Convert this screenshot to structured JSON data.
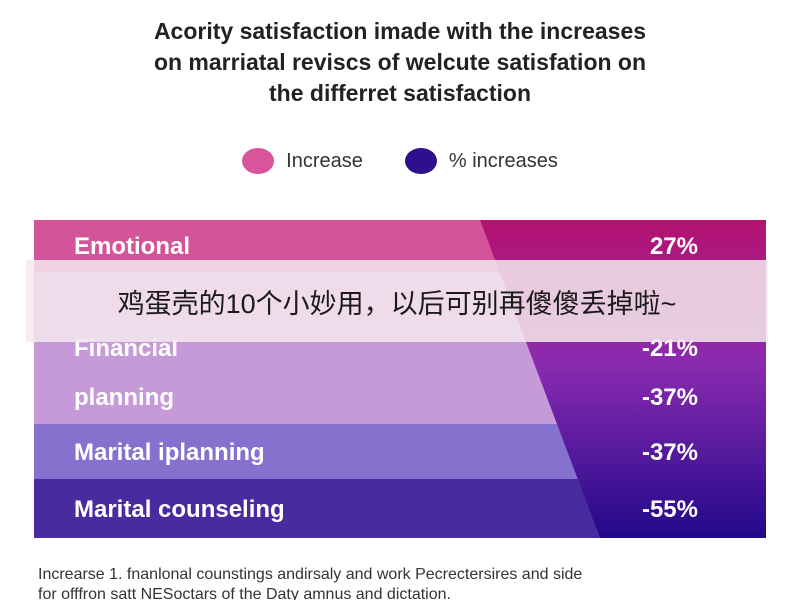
{
  "title_lines": [
    "Acority satisfaction imade with the increases",
    "on marriatal reviscs of welcute satisfation on",
    "the differret satisfaction"
  ],
  "legend": [
    {
      "label": "Increase",
      "color": "#d9559a"
    },
    {
      "label": "% increases",
      "color": "#2f0f8c"
    }
  ],
  "colors": {
    "increase": "#d9559a",
    "pct_increases": "#2f0f8c",
    "rows": [
      "#d4549a",
      "#cf8fd4",
      "#c69ad8",
      "#8572cf",
      "#4a2b9f"
    ],
    "right_panel": "#7b2aa8"
  },
  "chart_data": {
    "type": "table",
    "categories": [
      "Emotional",
      "",
      "Financial",
      "planning",
      "Marital iplanning",
      "Marital counseling"
    ],
    "values": [
      27,
      null,
      -21,
      -37,
      -37,
      -55
    ],
    "value_labels": [
      "27%",
      "",
      "-21%",
      "-37%",
      "-37%",
      "-55%"
    ]
  },
  "overlay_caption": "鸡蛋壳的10个小妙用，以后可别再傻傻丢掉啦~",
  "footnote_lines": [
    "Increarse 1. fnanlonal counstings andirsaly and work Pecrectersires and side",
    "for offfron satt NESoctars of the Daty amnus and dictation."
  ]
}
